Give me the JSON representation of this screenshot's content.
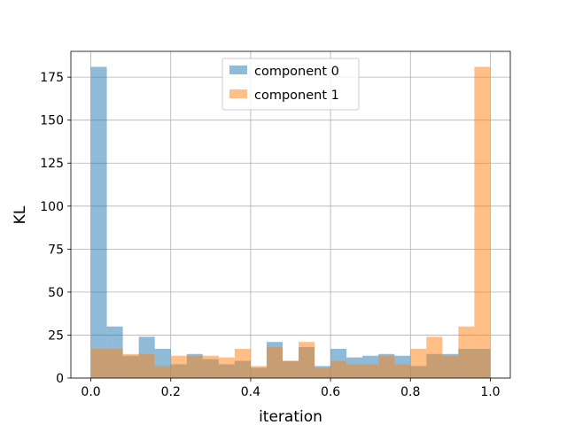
{
  "chart_data": {
    "type": "bar",
    "subtype": "overlaid-histogram",
    "title": "",
    "xlabel": "iteration",
    "ylabel": "KL",
    "xlim": [
      -0.05,
      1.05
    ],
    "ylim": [
      0,
      190
    ],
    "xticks": [
      0.0,
      0.2,
      0.4,
      0.6,
      0.8,
      1.0
    ],
    "xtick_labels": [
      "0.0",
      "0.2",
      "0.4",
      "0.6",
      "0.8",
      "1.0"
    ],
    "yticks": [
      0,
      25,
      50,
      75,
      100,
      125,
      150,
      175
    ],
    "ytick_labels": [
      "0",
      "25",
      "50",
      "75",
      "100",
      "125",
      "150",
      "175"
    ],
    "grid": true,
    "legend_position": "top-center",
    "bin_edges": [
      0.0,
      0.04,
      0.08,
      0.12,
      0.16,
      0.2,
      0.24,
      0.28,
      0.32,
      0.36,
      0.4,
      0.44,
      0.48,
      0.52,
      0.56,
      0.6,
      0.64,
      0.68,
      0.72,
      0.76,
      0.8,
      0.84,
      0.88,
      0.92,
      0.96,
      1.0
    ],
    "series": [
      {
        "name": "component 0",
        "color": "#1f77b4",
        "opacity": 0.5,
        "values": [
          181,
          30,
          13,
          24,
          17,
          8,
          14,
          11,
          8,
          10,
          6,
          21,
          10,
          18,
          7,
          17,
          12,
          13,
          14,
          13,
          7,
          14,
          14,
          17,
          17
        ]
      },
      {
        "name": "component 1",
        "color": "#ff7f0e",
        "opacity": 0.5,
        "values": [
          17,
          17,
          14,
          14,
          7,
          13,
          13,
          13,
          12,
          17,
          7,
          18,
          10,
          21,
          6,
          10,
          8,
          8,
          13,
          8,
          17,
          24,
          13,
          30,
          181
        ]
      }
    ]
  }
}
